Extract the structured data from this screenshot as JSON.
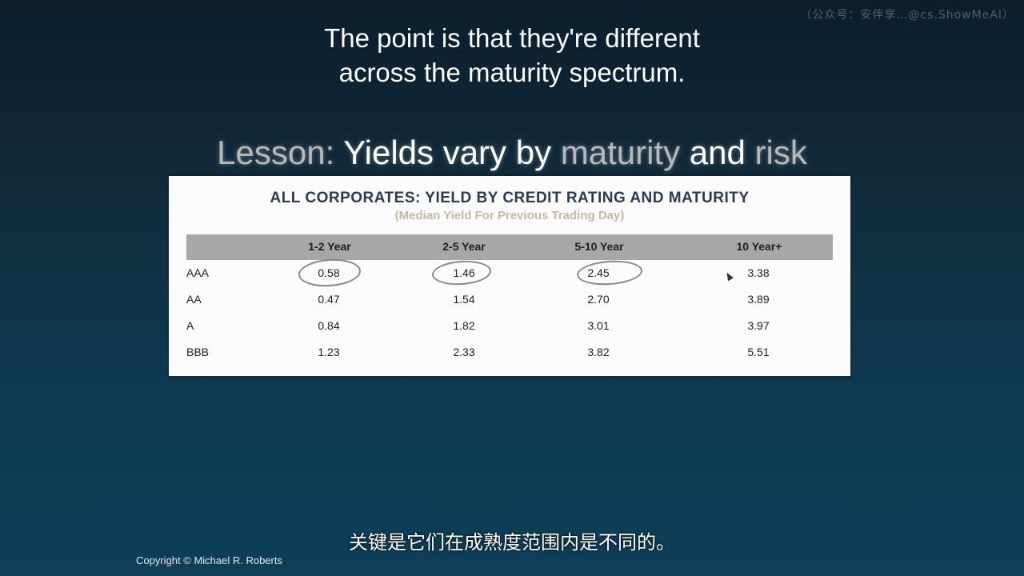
{
  "watermark": "（公众号：安伴享…@cs.ShowMeAI）",
  "caption_top": {
    "line1": "The point is that they're different",
    "line2": "across the maturity spectrum."
  },
  "lesson": {
    "prefix": "Lesson:",
    "part1": "Yields vary by",
    "part2": "maturity",
    "part3": "and",
    "part4": "risk"
  },
  "table": {
    "title": "ALL CORPORATES: YIELD BY CREDIT RATING AND MATURITY",
    "subtitle": "(Median Yield For Previous Trading Day)",
    "columns": [
      "1-2 Year",
      "2-5 Year",
      "5-10 Year",
      "10 Year+"
    ],
    "rows": [
      {
        "label": "AAA",
        "values": [
          "0.58",
          "1.46",
          "2.45",
          "3.38"
        ]
      },
      {
        "label": "AA",
        "values": [
          "0.47",
          "1.54",
          "2.70",
          "3.89"
        ]
      },
      {
        "label": "A",
        "values": [
          "0.84",
          "1.82",
          "3.01",
          "3.97"
        ]
      },
      {
        "label": "BBB",
        "values": [
          "1.23",
          "2.33",
          "3.82",
          "5.51"
        ]
      }
    ]
  },
  "caption_bottom": "关键是它们在成熟度范围内是不同的。",
  "copyright": "Copyright © Michael R. Roberts"
}
